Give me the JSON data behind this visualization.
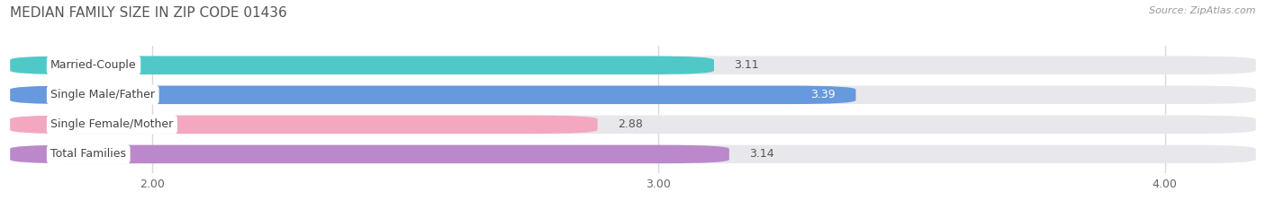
{
  "title": "MEDIAN FAMILY SIZE IN ZIP CODE 01436",
  "source": "Source: ZipAtlas.com",
  "categories": [
    "Married-Couple",
    "Single Male/Father",
    "Single Female/Mother",
    "Total Families"
  ],
  "values": [
    3.11,
    3.39,
    2.88,
    3.14
  ],
  "bar_colors": [
    "#50C8C8",
    "#6699DD",
    "#F4A8C0",
    "#BB88CC"
  ],
  "xlim_min": 1.72,
  "xlim_max": 4.18,
  "data_min": 1.72,
  "xticks": [
    2.0,
    3.0,
    4.0
  ],
  "xtick_labels": [
    "2.00",
    "3.00",
    "4.00"
  ],
  "bar_height": 0.62,
  "bg_color": "#ffffff",
  "bar_bg_color": "#e8e8ec",
  "grid_color": "#d8d8e0",
  "row_gap_color": "#ffffff"
}
